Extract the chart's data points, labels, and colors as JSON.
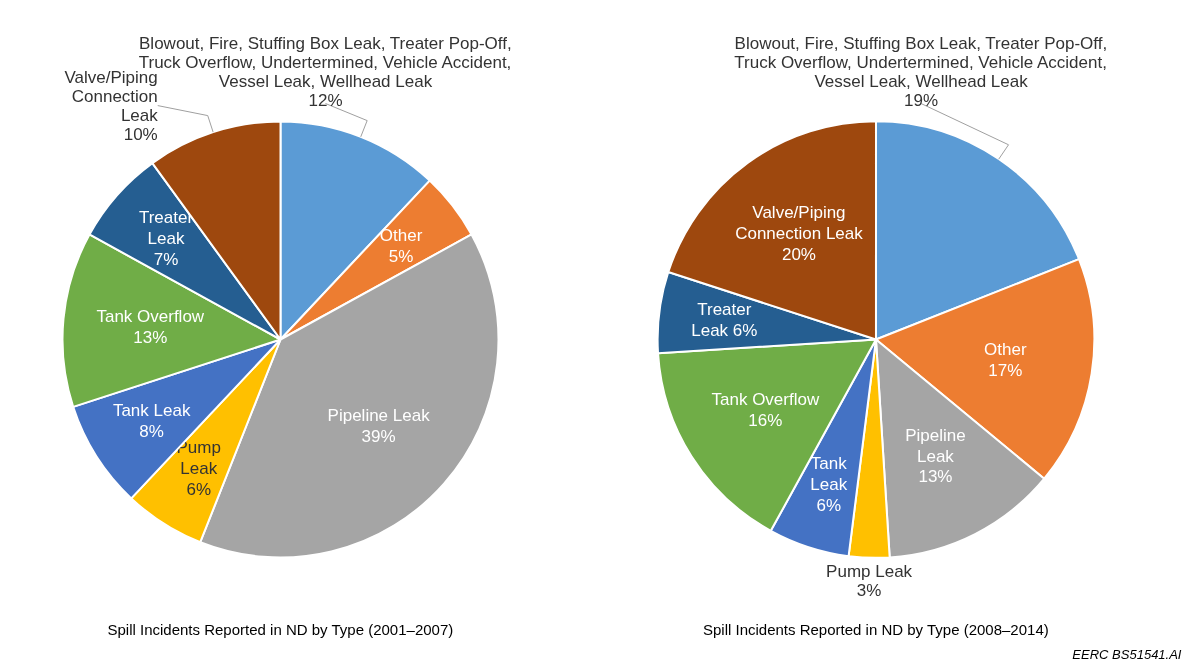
{
  "chart_data": [
    {
      "type": "pie",
      "title": "Spill Incidents Reported in ND by Type (2001–2007)",
      "categories": [
        "Blowout, Fire, Stuffing Box Leak, Treater Pop-Off,\nTruck Overflow, Undertermined, Vehicle Accident,\nVessel Leak, Wellhead Leak",
        "Other",
        "Pipeline Leak",
        "Pump\nLeak",
        "Tank Leak",
        "Tank Overflow",
        "Treater\nLeak",
        "Valve/Piping\nConnection\nLeak"
      ],
      "values": [
        12,
        5,
        39,
        6,
        8,
        13,
        7,
        10
      ],
      "colors": [
        "#5b9bd5",
        "#ed7d31",
        "#a5a5a5",
        "#ffc000",
        "#4472c4",
        "#70ad47",
        "#255e91",
        "#9e480e"
      ],
      "value_labels": [
        "12%",
        "5%",
        "39%",
        "6%",
        "8%",
        "13%",
        "7%",
        "10%"
      ]
    },
    {
      "type": "pie",
      "title": "Spill Incidents Reported in ND by Type (2008–2014)",
      "categories": [
        "Blowout, Fire, Stuffing Box Leak, Treater Pop-Off,\nTruck Overflow, Undertermined, Vehicle Accident,\nVessel Leak, Wellhead Leak",
        "Other",
        "Pipeline\nLeak",
        "Pump Leak",
        "Tank\nLeak",
        "Tank Overflow",
        "Treater\nLeak",
        "Valve/Piping\nConnection Leak"
      ],
      "values": [
        19,
        17,
        13,
        3,
        6,
        16,
        6,
        20
      ],
      "colors": [
        "#5b9bd5",
        "#ed7d31",
        "#a5a5a5",
        "#ffc000",
        "#4472c4",
        "#70ad47",
        "#255e91",
        "#9e480e"
      ],
      "value_labels": [
        "19%",
        "17%",
        "13%",
        "3%",
        "6%",
        "16%",
        "6%",
        "20%"
      ],
      "annotations": [
        "EERC BS51541.AI"
      ]
    }
  ]
}
